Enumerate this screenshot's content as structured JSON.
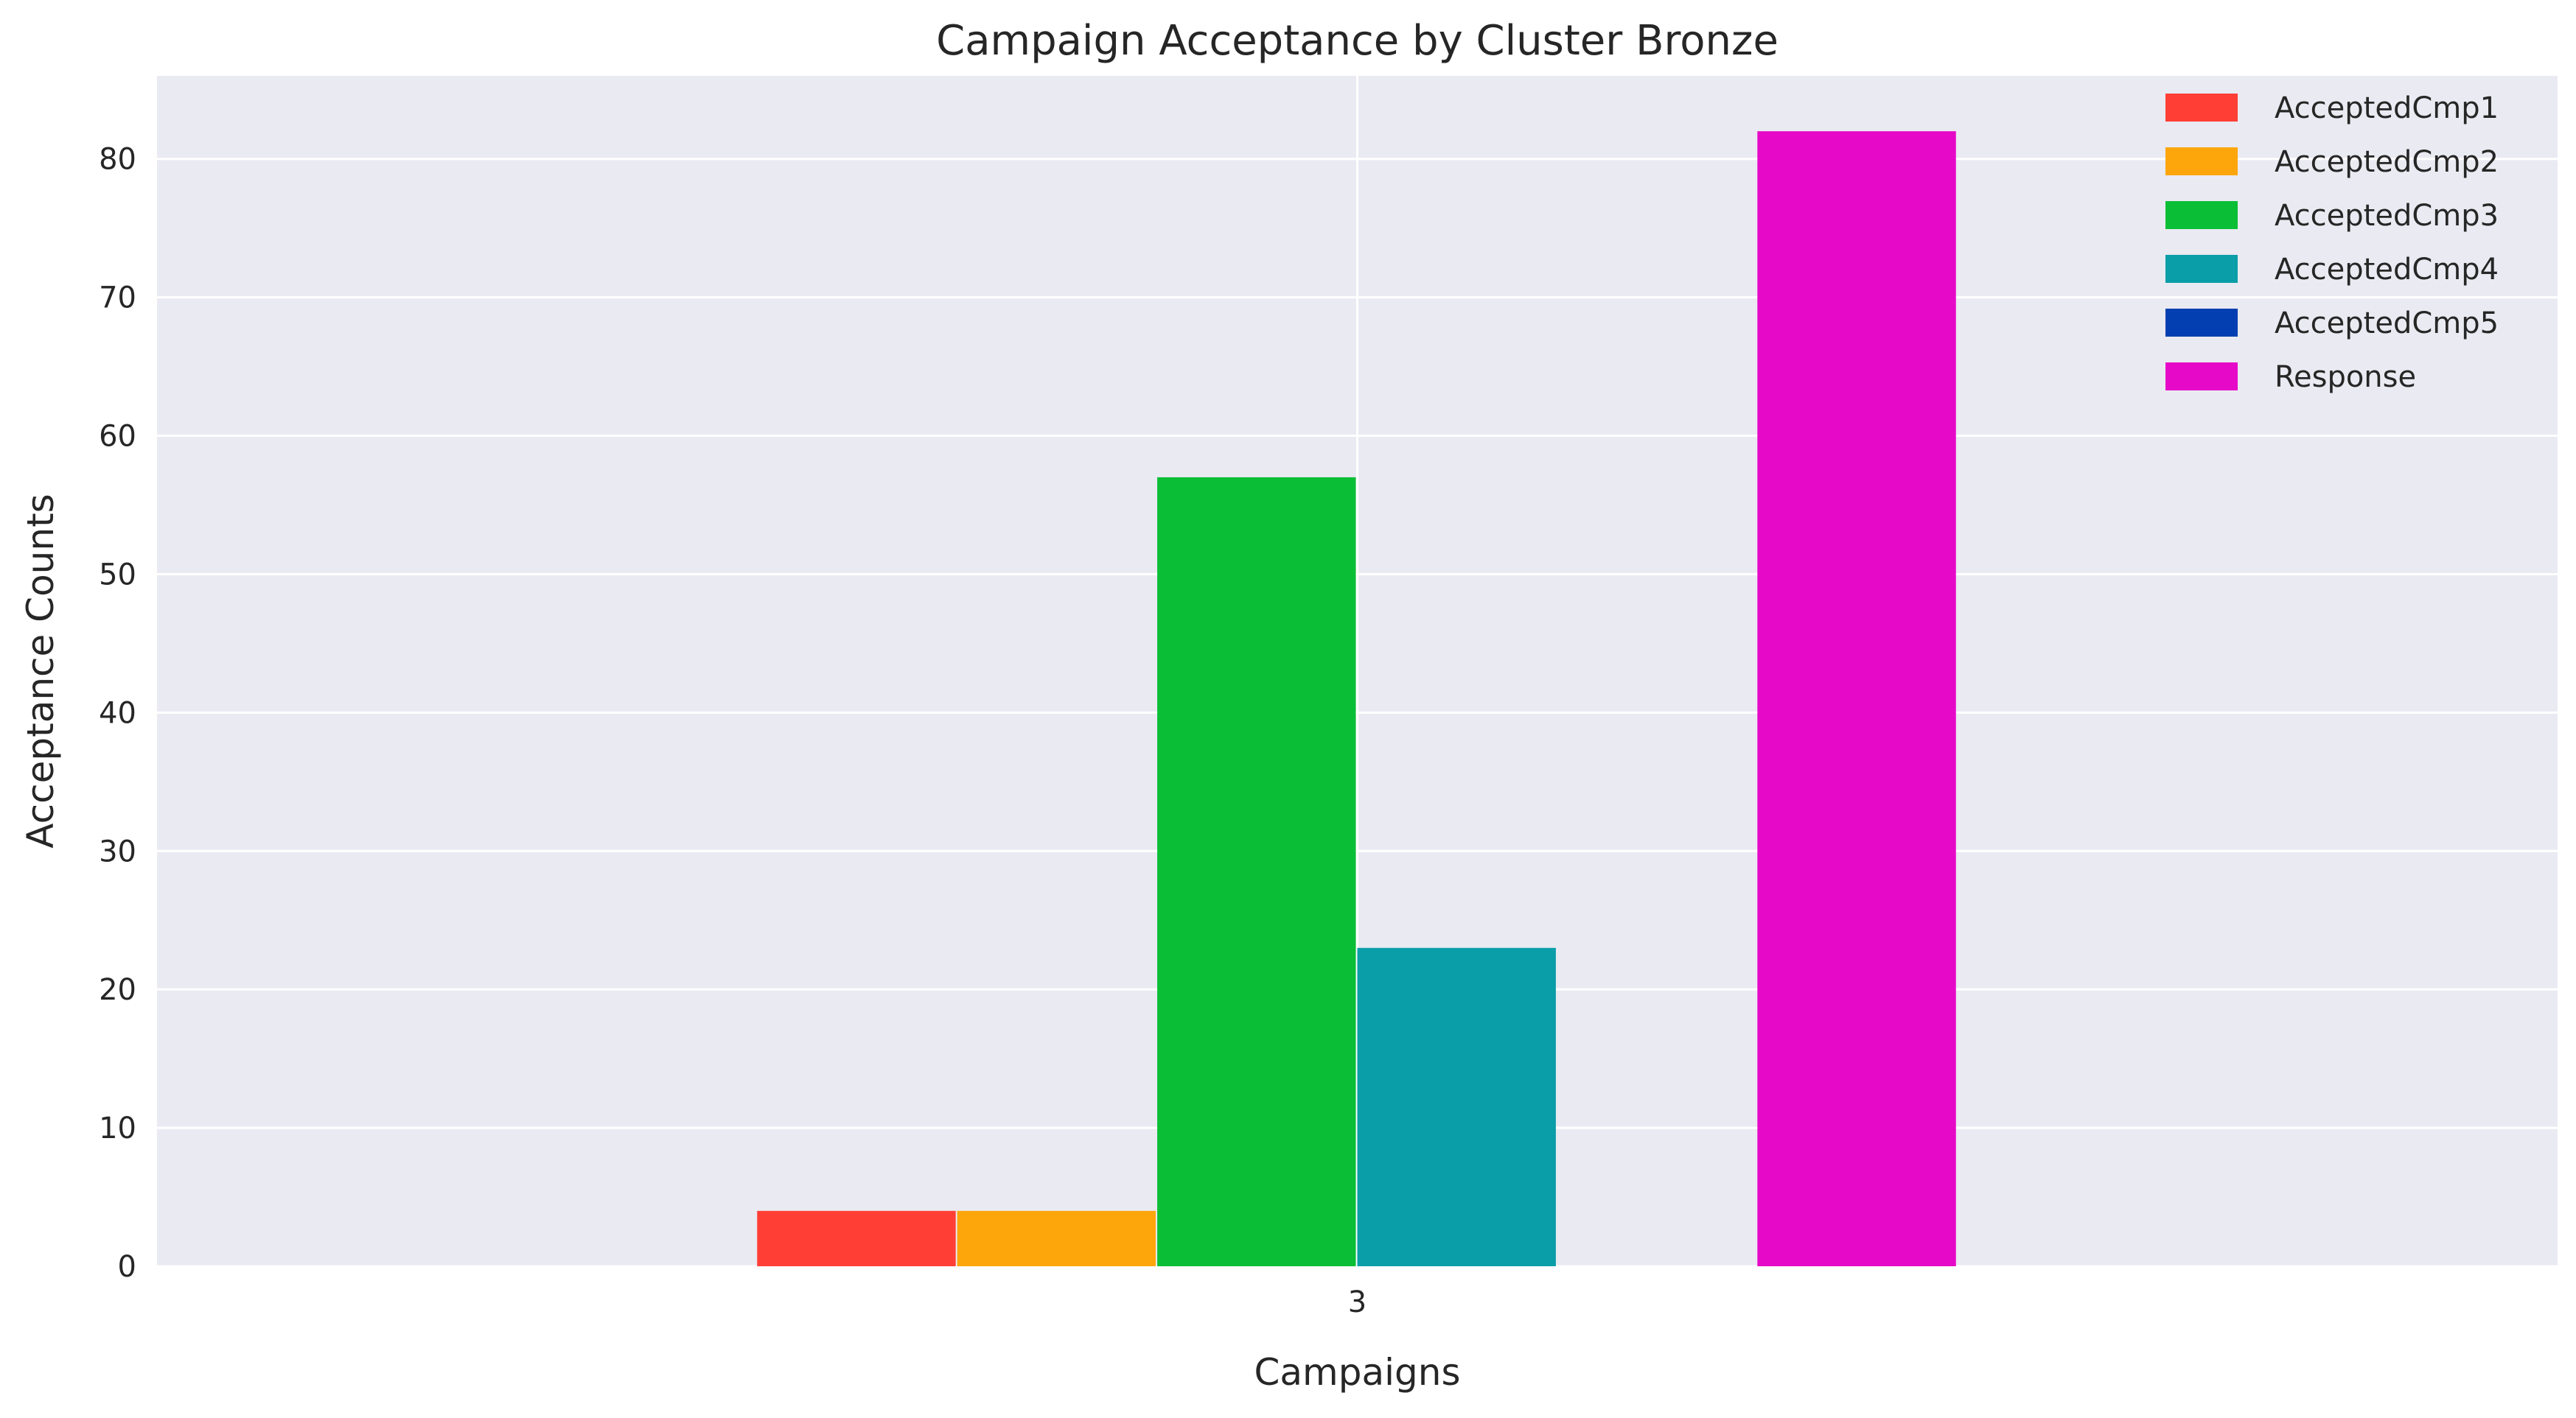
{
  "chart_data": {
    "type": "bar",
    "title": "Campaign Acceptance by Cluster Bronze",
    "xlabel": "Campaigns",
    "ylabel": "Acceptance Counts",
    "categories": [
      "3"
    ],
    "ylim": [
      0,
      86
    ],
    "yticks": [
      0,
      10,
      20,
      30,
      40,
      50,
      60,
      70,
      80
    ],
    "grid": true,
    "legend_position": "top-right",
    "background": "#eaeaf2",
    "series": [
      {
        "name": "AcceptedCmp1",
        "values": [
          4
        ],
        "color": "#ff3f36"
      },
      {
        "name": "AcceptedCmp2",
        "values": [
          4
        ],
        "color": "#fca60c"
      },
      {
        "name": "AcceptedCmp3",
        "values": [
          57
        ],
        "color": "#0abf35"
      },
      {
        "name": "AcceptedCmp4",
        "values": [
          23
        ],
        "color": "#0a9ea8"
      },
      {
        "name": "AcceptedCmp5",
        "values": [
          0
        ],
        "color": "#033fb0"
      },
      {
        "name": "Response",
        "values": [
          82
        ],
        "color": "#e60ac8"
      }
    ]
  }
}
